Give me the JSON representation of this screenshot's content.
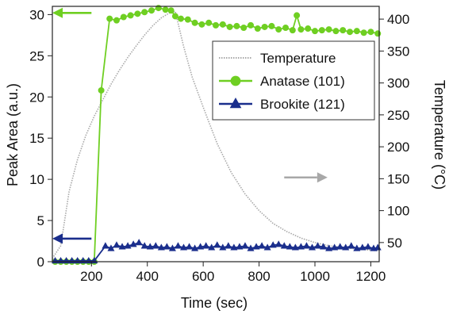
{
  "chart_data": {
    "type": "line",
    "xlabel": "Time (sec)",
    "ylabel": "Peak Area (a.u.)",
    "y2label": "Temperature (°C)",
    "xlim": [
      60,
      1230
    ],
    "ylim": [
      0,
      31
    ],
    "y2lim": [
      20,
      420
    ],
    "xticks": [
      200,
      400,
      600,
      800,
      1000,
      1200
    ],
    "yticks": [
      0,
      5,
      10,
      15,
      20,
      25,
      30
    ],
    "y2ticks": [
      50,
      100,
      150,
      200,
      250,
      300,
      350,
      400
    ],
    "legend_position": "upper-right",
    "grid": false,
    "series": [
      {
        "name": "Temperature",
        "axis": "right",
        "style": "dotted",
        "color": "#a8a8a8",
        "x": [
          60,
          90,
          120,
          150,
          180,
          210,
          240,
          270,
          300,
          330,
          360,
          390,
          420,
          450,
          480,
          500,
          530,
          560,
          600,
          650,
          700,
          750,
          800,
          850,
          900,
          950,
          1000,
          1050,
          1100,
          1150,
          1200,
          1230
        ],
        "values": [
          25,
          45,
          130,
          180,
          218,
          248,
          273,
          298,
          320,
          340,
          358,
          375,
          390,
          402,
          410,
          412,
          357,
          310,
          262,
          205,
          160,
          126,
          100,
          80,
          67,
          57,
          50,
          45,
          42,
          40,
          38,
          37
        ]
      },
      {
        "name": "Anatase (101)",
        "axis": "left",
        "marker": "circle",
        "color": "#6fcf22",
        "x": [
          70,
          90,
          110,
          130,
          150,
          170,
          190,
          210,
          235,
          265,
          290,
          315,
          340,
          365,
          390,
          415,
          440,
          465,
          485,
          500,
          520,
          545,
          570,
          595,
          620,
          645,
          670,
          695,
          720,
          745,
          770,
          795,
          820,
          845,
          870,
          895,
          920,
          935,
          950,
          975,
          1000,
          1025,
          1050,
          1075,
          1100,
          1125,
          1150,
          1175,
          1200,
          1225
        ],
        "values": [
          0,
          0,
          0,
          0,
          0,
          0,
          0,
          0,
          20.8,
          29.5,
          29.3,
          29.7,
          29.9,
          30.1,
          30.3,
          30.5,
          30.8,
          30.6,
          30.5,
          29.8,
          29.5,
          29.4,
          29.0,
          28.8,
          29.0,
          28.7,
          28.8,
          28.5,
          28.6,
          28.4,
          28.7,
          28.3,
          28.5,
          28.6,
          28.2,
          28.4,
          28.1,
          29.9,
          28.2,
          28.3,
          28.0,
          28.1,
          28.2,
          28.0,
          28.1,
          27.9,
          28.0,
          27.8,
          27.9,
          27.7
        ]
      },
      {
        "name": "Brookite (121)",
        "axis": "left",
        "marker": "triangle",
        "color": "#1a2e8c",
        "x": [
          70,
          90,
          110,
          130,
          150,
          170,
          190,
          210,
          250,
          270,
          290,
          310,
          330,
          350,
          370,
          390,
          410,
          430,
          450,
          470,
          490,
          510,
          530,
          550,
          570,
          590,
          610,
          630,
          650,
          670,
          690,
          710,
          730,
          750,
          770,
          790,
          810,
          830,
          850,
          870,
          890,
          910,
          930,
          950,
          970,
          990,
          1010,
          1030,
          1050,
          1070,
          1090,
          1110,
          1130,
          1150,
          1170,
          1190,
          1210,
          1225
        ],
        "values": [
          0.1,
          0.1,
          0.1,
          0.1,
          0.1,
          0.1,
          0.1,
          0.1,
          1.9,
          1.6,
          2.0,
          1.8,
          1.9,
          2.1,
          2.3,
          1.9,
          1.8,
          1.9,
          1.7,
          1.8,
          1.6,
          1.9,
          1.7,
          1.8,
          1.6,
          1.8,
          1.9,
          1.7,
          2.0,
          1.7,
          1.9,
          1.7,
          1.8,
          1.9,
          1.6,
          1.8,
          1.9,
          1.7,
          2.0,
          2.1,
          1.9,
          1.8,
          1.7,
          1.8,
          1.9,
          1.7,
          1.9,
          1.8,
          1.6,
          1.7,
          1.8,
          1.7,
          1.9,
          1.6,
          1.7,
          1.8,
          1.6,
          1.7
        ]
      }
    ],
    "annotations": [
      {
        "type": "arrow",
        "points": "left",
        "color": "#6fcf22",
        "y_axis": "left",
        "x_from": 200,
        "x_to": 60,
        "y": 30.2
      },
      {
        "type": "arrow",
        "points": "left",
        "color": "#1a2e8c",
        "y_axis": "left",
        "x_from": 200,
        "x_to": 60,
        "y": 2.8
      },
      {
        "type": "arrow",
        "points": "right",
        "color": "#a8a8a8",
        "y_axis": "right",
        "x_from": 890,
        "x_to": 1045,
        "y": 152
      }
    ]
  }
}
